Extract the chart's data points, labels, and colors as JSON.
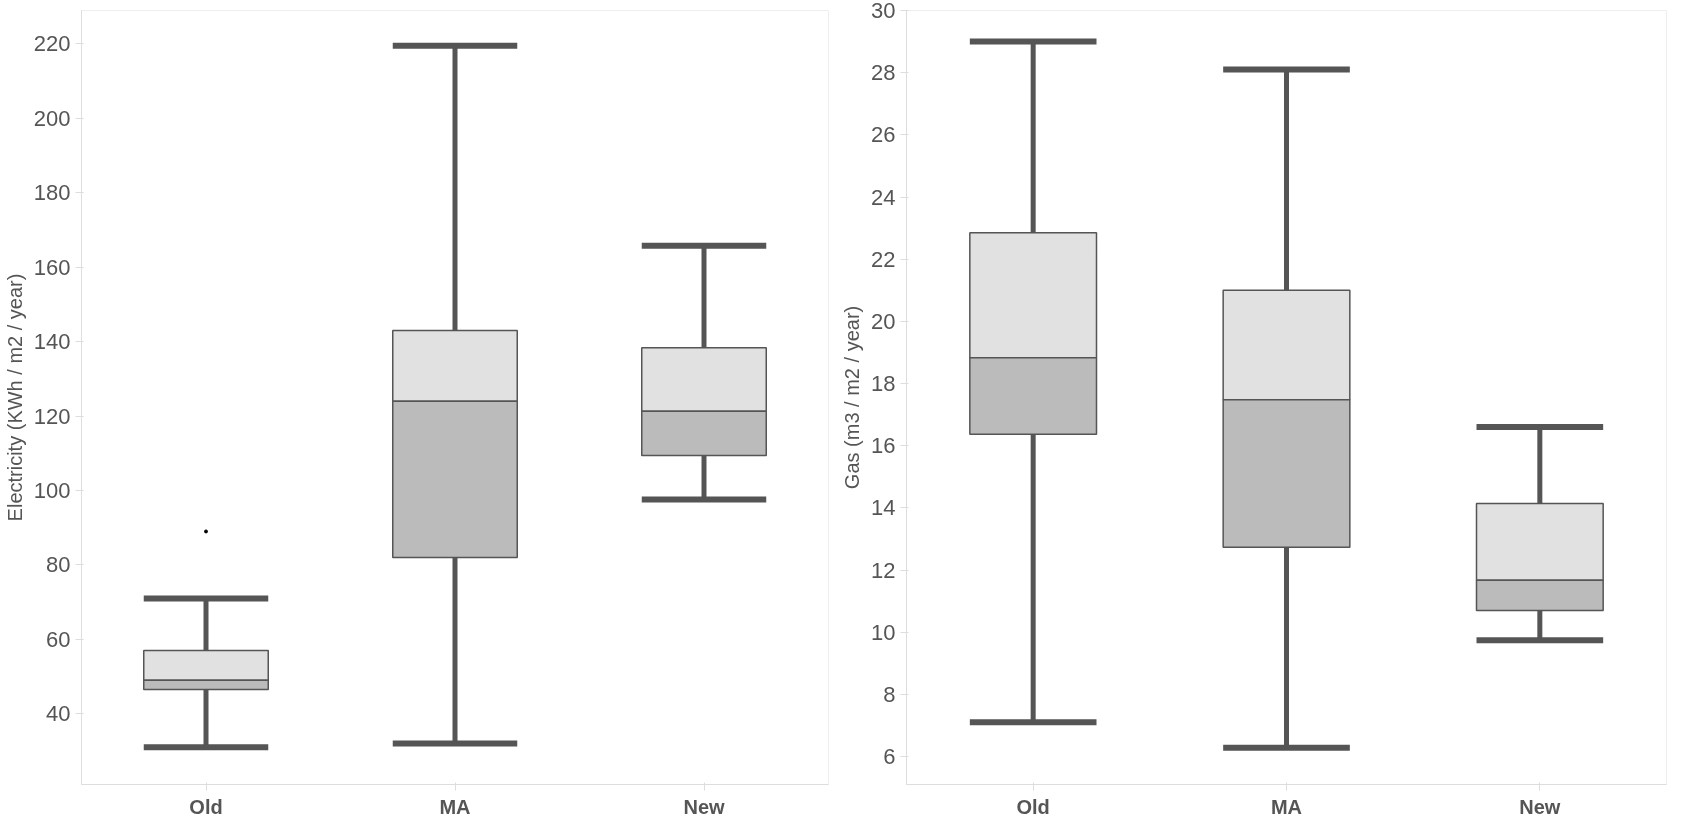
{
  "chart_data": [
    {
      "type": "box",
      "ylabel": "Electricity (KWh / m2 / year)",
      "categories": [
        "Old",
        "MA",
        "New"
      ],
      "color": "#e1e1e1",
      "colors": [
        "#bbbbbb",
        "#bbbbbb",
        "#bbbbbb"
      ],
      "ylim": [
        21,
        229
      ],
      "yticks": [
        40,
        60,
        80,
        100,
        120,
        140,
        160,
        180,
        200,
        220
      ],
      "grid": false,
      "boxes": [
        {
          "low": 31,
          "q1": 46.5,
          "median": 49,
          "q3": 57,
          "high": 71,
          "outliers": [
            89
          ]
        },
        {
          "low": 32,
          "q1": 82,
          "median": 124,
          "q3": 143,
          "high": 219.5
        },
        {
          "low": 97.6,
          "q1": 109.4,
          "median": 121.3,
          "q3": 138.4,
          "high": 165.8
        }
      ]
    },
    {
      "type": "box",
      "ylabel": "Gas (m3 / m2 / year)",
      "categories": [
        "Old",
        "MA",
        "New"
      ],
      "color": "#e1e1e1",
      "colors": [
        "#bbbbbb",
        "#bbbbbb",
        "#bbbbbb"
      ],
      "ylim": [
        5.1,
        30
      ],
      "yticks": [
        6,
        8,
        10,
        12,
        14,
        16,
        18,
        20,
        22,
        24,
        26,
        28,
        30
      ],
      "grid": false,
      "boxes": [
        {
          "low": 7.1,
          "q1": 16.37,
          "median": 18.83,
          "q3": 22.85,
          "high": 29.0
        },
        {
          "low": 6.28,
          "q1": 12.73,
          "median": 17.48,
          "q3": 21.0,
          "high": 28.1
        },
        {
          "low": 9.74,
          "q1": 10.7,
          "median": 11.67,
          "q3": 14.14,
          "high": 16.6
        }
      ]
    }
  ]
}
